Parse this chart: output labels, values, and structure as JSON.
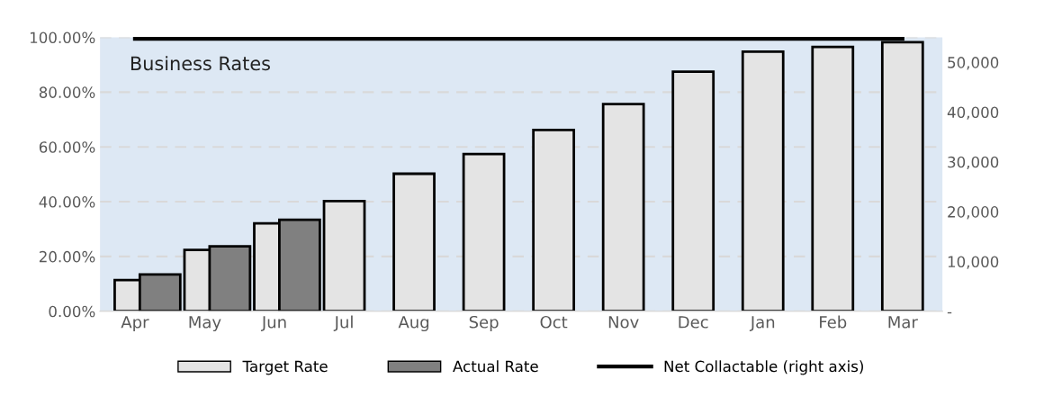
{
  "chart_data": {
    "type": "bar",
    "title": "Business Rates",
    "categories": [
      "Apr",
      "May",
      "Jun",
      "Jul",
      "Aug",
      "Sep",
      "Oct",
      "Nov",
      "Dec",
      "Jan",
      "Feb",
      "Mar"
    ],
    "series": [
      {
        "name": "Target Rate",
        "color": "#e4e4e4",
        "values": [
          11.4,
          22.4,
          32.1,
          40.2,
          50.2,
          57.4,
          66.2,
          75.6,
          87.5,
          94.8,
          96.5,
          98.2
        ]
      },
      {
        "name": "Actual Rate",
        "color": "#808080",
        "values": [
          13.4,
          23.7,
          33.4,
          null,
          null,
          null,
          null,
          null,
          null,
          null,
          null,
          null
        ]
      },
      {
        "name": "Net Collactable (right axis)",
        "type": "line",
        "axis": "y2",
        "color": "#000000",
        "values": [
          54700,
          54700,
          54700,
          54700,
          54700,
          54700,
          54700,
          54700,
          54700,
          54700,
          54700,
          54700
        ]
      }
    ],
    "ylim": [
      0,
      100
    ],
    "yticks": [
      {
        "value": 0,
        "label": "0.00%"
      },
      {
        "value": 20,
        "label": "20.00%"
      },
      {
        "value": 40,
        "label": "40.00%"
      },
      {
        "value": 60,
        "label": "60.00%"
      },
      {
        "value": 80,
        "label": "80.00%"
      },
      {
        "value": 100,
        "label": "100.00%"
      }
    ],
    "y2lim": [
      0,
      55000
    ],
    "y2ticks": [
      {
        "value": 0,
        "label": "-"
      },
      {
        "value": 10000,
        "label": "10,000"
      },
      {
        "value": 20000,
        "label": "20,000"
      },
      {
        "value": 30000,
        "label": "30,000"
      },
      {
        "value": 40000,
        "label": "40,000"
      },
      {
        "value": 50000,
        "label": "50,000"
      }
    ],
    "grid": "y",
    "legend": "bottom",
    "line_style": "solid",
    "marker": "none"
  }
}
